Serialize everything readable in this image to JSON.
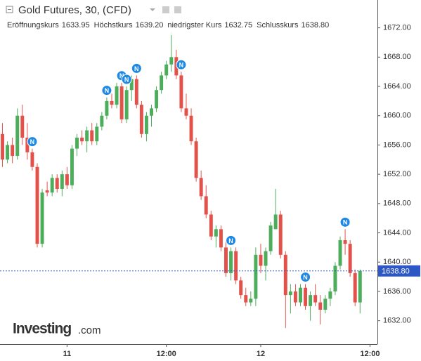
{
  "chart_data": {
    "type": "candlestick",
    "title": "Gold Futures, 30, (CFD)",
    "stats": [
      {
        "label": "Eröffnungskurs",
        "value": "1633.95"
      },
      {
        "label": "Höchstkurs",
        "value": "1639.20"
      },
      {
        "label": "niedrigster Kurs",
        "value": "1632.75"
      },
      {
        "label": "Schlusskurs",
        "value": "1638.80"
      }
    ],
    "logo": {
      "brand": "Investing",
      "suffix": ".com"
    },
    "categories": [
      null,
      null,
      null,
      null,
      null,
      null,
      null,
      null,
      null,
      null,
      null,
      null,
      null,
      "11",
      null,
      null,
      null,
      null,
      null,
      null,
      null,
      null,
      null,
      null,
      null,
      null,
      null,
      null,
      null,
      null,
      null,
      null,
      null,
      "12:00",
      null,
      null,
      null,
      null,
      null,
      null,
      null,
      null,
      null,
      null,
      null,
      null,
      null,
      null,
      null,
      null,
      null,
      null,
      "12",
      null,
      null,
      null,
      null,
      null,
      null,
      null,
      null,
      null,
      null,
      null,
      null,
      null,
      null,
      null,
      null,
      null,
      null,
      null,
      null,
      null,
      "12:00",
      null
    ],
    "open": [
      1657.5,
      1654,
      1656,
      1654.5,
      1660,
      1657,
      1655,
      1653,
      1642.5,
      1649.8,
      1649.5,
      1651.5,
      1650,
      1652,
      1650.5,
      1655.5,
      1657,
      1656.5,
      1658,
      1656.5,
      1658.5,
      1660,
      1662,
      1661.5,
      1664,
      1659.5,
      1663.5,
      1665,
      1661.5,
      1657.5,
      1660,
      1661,
      1663.5,
      1665.5,
      1667,
      1668,
      1665.5,
      1661,
      1660,
      1656.5,
      1651.5,
      1649,
      1646.5,
      1643.5,
      1644.5,
      1642,
      1638.5,
      1641.5,
      1637.5,
      1635.5,
      1634.5,
      1635,
      1641,
      1639.5,
      1641.5,
      1644.5,
      1646.5,
      1641,
      1635.5,
      1636,
      1634.5,
      1636.5,
      1634,
      1635.5,
      1634.5,
      1633.5,
      1635,
      1636,
      1639.5,
      1643,
      1642.5,
      1638.5,
      1634.5,
      null,
      null,
      null
    ],
    "high": [
      1659,
      1656.5,
      1657,
      1661,
      1661.5,
      1659,
      1655.5,
      1653.5,
      1650,
      1651,
      1652,
      1652,
      1652.5,
      1653,
      1656,
      1657.5,
      1658,
      1658.5,
      1659,
      1659,
      1660.5,
      1662.5,
      1663,
      1664.5,
      1664.5,
      1664,
      1665.5,
      1665.5,
      1662,
      1660.5,
      1661.5,
      1664,
      1666,
      1667.5,
      1671.5,
      1669,
      1666,
      1663,
      1661,
      1657,
      1652.5,
      1650.5,
      1647,
      1645,
      1645,
      1643,
      1642,
      1642,
      1638,
      1636.5,
      1636,
      1642,
      1642.5,
      1642,
      1645.5,
      1650,
      1647,
      1641.5,
      1637,
      1637,
      1637,
      1637,
      1636,
      1637,
      1635.5,
      1635.5,
      1636.5,
      1640,
      1643.5,
      1644.5,
      1643,
      1639,
      1639,
      null,
      null,
      null
    ],
    "low": [
      1653,
      1653.5,
      1653.5,
      1654,
      1656,
      1654,
      1652.5,
      1642,
      1642,
      1649,
      1649,
      1649.5,
      1649,
      1650,
      1650,
      1654.5,
      1656,
      1655,
      1656,
      1656,
      1658,
      1659.5,
      1661,
      1661,
      1659,
      1659,
      1662,
      1661,
      1657,
      1656.5,
      1658.5,
      1660.5,
      1663,
      1665,
      1666,
      1665,
      1660.5,
      1659.5,
      1656,
      1651,
      1648.5,
      1646,
      1643,
      1642,
      1641.5,
      1638,
      1637.5,
      1637,
      1635,
      1634,
      1634,
      1634,
      1638.5,
      1637.5,
      1641,
      1644.5,
      1640.5,
      1631,
      1633,
      1634,
      1634,
      1633.5,
      1632,
      1634,
      1631.5,
      1633,
      1634,
      1635.5,
      1639,
      1641,
      1638,
      1634,
      1633,
      null,
      null,
      null
    ],
    "close": [
      1654,
      1656,
      1654.5,
      1660,
      1657,
      1655,
      1653,
      1642.5,
      1649.5,
      1649.5,
      1651.5,
      1650,
      1652,
      1650.5,
      1655.5,
      1657,
      1656.5,
      1658,
      1656.5,
      1658.5,
      1660,
      1662,
      1661.5,
      1664,
      1659.5,
      1663.5,
      1665,
      1661.5,
      1657.5,
      1660,
      1661,
      1663.5,
      1665.5,
      1667,
      1668,
      1665.5,
      1661,
      1660,
      1656.5,
      1651.5,
      1649,
      1646.5,
      1643.5,
      1644.5,
      1642,
      1638.5,
      1641.5,
      1637.5,
      1635.5,
      1634.5,
      1635,
      1641,
      1639.5,
      1641.5,
      1645,
      1646.5,
      1641,
      1635.5,
      1636,
      1634.5,
      1636.5,
      1634,
      1635.5,
      1634.5,
      1633.5,
      1635,
      1636,
      1639.5,
      1643,
      1642.5,
      1638.5,
      1634.5,
      1638.8,
      null,
      null,
      null
    ],
    "up_color": "#4cae5a",
    "down_color": "#e2524b",
    "ylim": [
      1628.8,
      1675.8
    ],
    "yticks": [
      {
        "value": 1632,
        "label": "1632.00"
      },
      {
        "value": 1636,
        "label": "1636.00"
      },
      {
        "value": 1640,
        "label": "1640.00"
      },
      {
        "value": 1644,
        "label": "1644.00"
      },
      {
        "value": 1648,
        "label": "1648.00"
      },
      {
        "value": 1652,
        "label": "1652.00"
      },
      {
        "value": 1656,
        "label": "1656.00"
      },
      {
        "value": 1660,
        "label": "1660.00"
      },
      {
        "value": 1664,
        "label": "1664.00"
      },
      {
        "value": 1668,
        "label": "1668.00"
      },
      {
        "value": 1672,
        "label": "1672.00"
      }
    ],
    "last_price": {
      "value": 1638.8,
      "label": "1638.80"
    },
    "annotations": [
      {
        "text": "N",
        "category": 6
      },
      {
        "text": "N",
        "category": 21
      },
      {
        "text": "N",
        "category": 24
      },
      {
        "text": "N",
        "category": 25
      },
      {
        "text": "N",
        "category": 27
      },
      {
        "text": "N",
        "category": 36
      },
      {
        "text": "N",
        "category": 46
      },
      {
        "text": "N",
        "category": 61
      },
      {
        "text": "N",
        "category": 69
      }
    ]
  }
}
